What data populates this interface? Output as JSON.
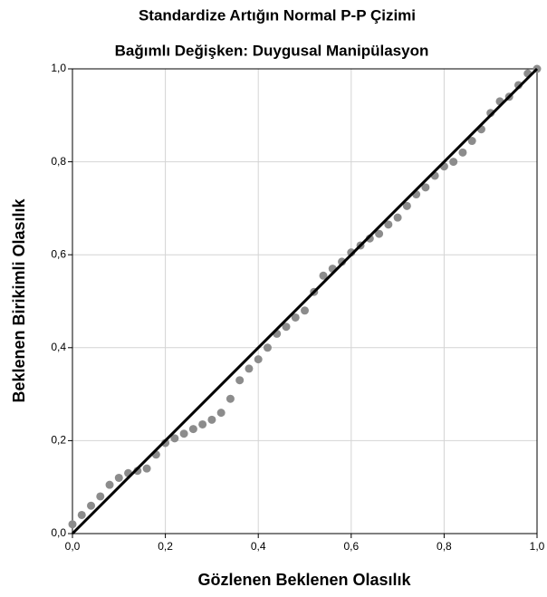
{
  "chart_data": {
    "type": "scatter",
    "title": "Standardize Artığın Normal P-P Çizimi",
    "subtitle": "Bağımlı Değişken: Duygusal Manipülasyon",
    "x_label": "Gözlenen Beklenen Olasılık",
    "y_label": "Beklenen Birikimli Olasılık",
    "color": "#8c8c8c",
    "grid": true,
    "xlim": [
      0,
      1
    ],
    "ylim": [
      0,
      1
    ],
    "xticks": [
      {
        "value": 0,
        "label": "0,0"
      },
      {
        "value": 0.2,
        "label": "0,2"
      },
      {
        "value": 0.4,
        "label": "0,4"
      },
      {
        "value": 0.6,
        "label": "0,6"
      },
      {
        "value": 0.8,
        "label": "0,8"
      },
      {
        "value": 1,
        "label": "1,0"
      }
    ],
    "yticks": [
      {
        "value": 0,
        "label": "0,0"
      },
      {
        "value": 0.2,
        "label": "0,2"
      },
      {
        "value": 0.4,
        "label": "0,4"
      },
      {
        "value": 0.6,
        "label": "0,6"
      },
      {
        "value": 0.8,
        "label": "0,8"
      },
      {
        "value": 1,
        "label": "1,0"
      }
    ],
    "x": [
      0,
      0.02,
      0.04,
      0.06,
      0.08,
      0.1,
      0.12,
      0.14,
      0.16,
      0.18,
      0.2,
      0.22,
      0.24,
      0.26,
      0.28,
      0.3,
      0.32,
      0.34,
      0.36,
      0.38,
      0.4,
      0.42,
      0.44,
      0.46,
      0.48,
      0.5,
      0.52,
      0.54,
      0.56,
      0.58,
      0.6,
      0.62,
      0.64,
      0.66,
      0.68,
      0.7,
      0.72,
      0.74,
      0.76,
      0.78,
      0.8,
      0.82,
      0.84,
      0.86,
      0.88,
      0.9,
      0.92,
      0.94,
      0.96,
      0.98,
      1
    ],
    "values": [
      0.02,
      0.04,
      0.06,
      0.08,
      0.105,
      0.12,
      0.13,
      0.135,
      0.14,
      0.17,
      0.195,
      0.205,
      0.215,
      0.225,
      0.235,
      0.245,
      0.26,
      0.29,
      0.33,
      0.355,
      0.375,
      0.4,
      0.43,
      0.445,
      0.465,
      0.48,
      0.52,
      0.555,
      0.57,
      0.585,
      0.605,
      0.62,
      0.635,
      0.645,
      0.665,
      0.68,
      0.705,
      0.73,
      0.745,
      0.77,
      0.79,
      0.8,
      0.82,
      0.845,
      0.87,
      0.905,
      0.93,
      0.94,
      0.965,
      0.99,
      1
    ]
  }
}
